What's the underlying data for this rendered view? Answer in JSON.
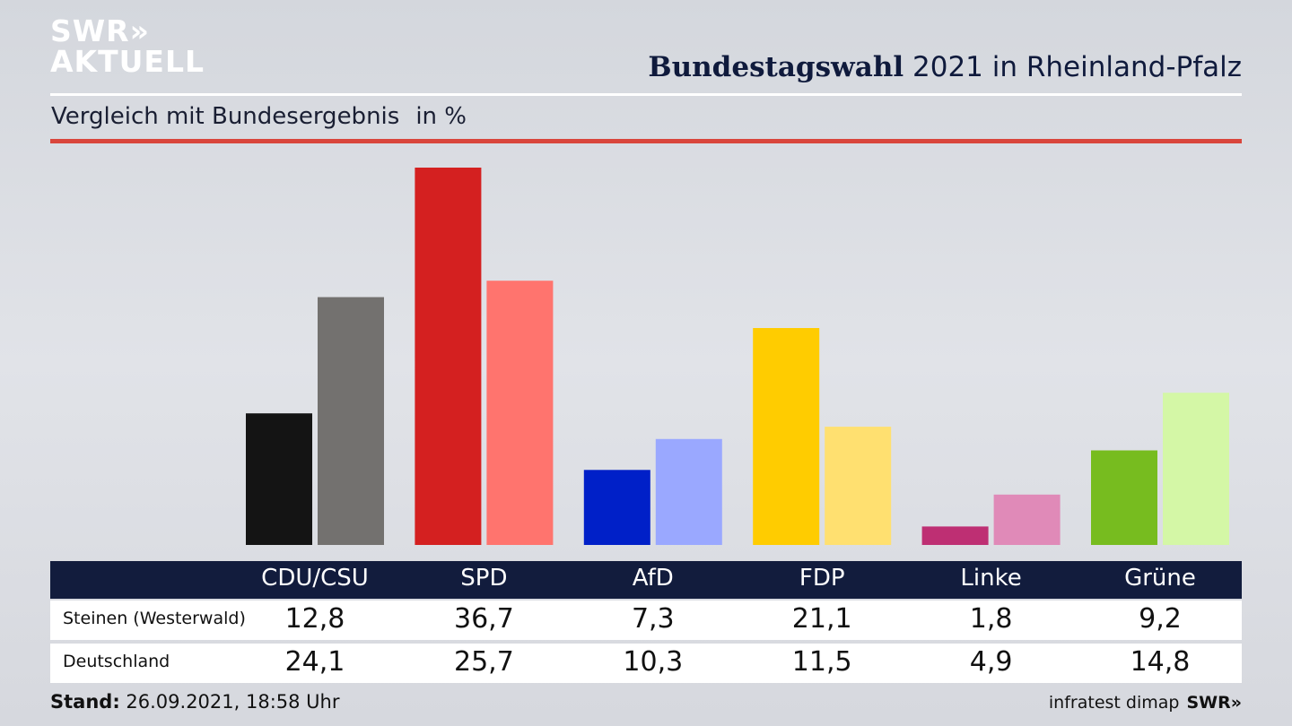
{
  "logo": {
    "line1": "SWR»",
    "line2": "AKTUELL"
  },
  "header": {
    "title_bold": "Bundestagswahl",
    "title_rest": " 2021 in Rheinland-Pfalz",
    "subtitle": "Vergleich mit Bundesergebnis",
    "unit": "in %"
  },
  "colors": {
    "header_bg": "#121c3d",
    "red_rule": "#d9463c",
    "local": [
      "#141414",
      "#d42020",
      "#0020c8",
      "#ffcc00",
      "#be2f73",
      "#77bc1f"
    ],
    "national": [
      "#73716f",
      "#ff746e",
      "#9aa8ff",
      "#ffe070",
      "#e08ab8",
      "#d4f7a6"
    ]
  },
  "chart_data": {
    "type": "bar",
    "categories": [
      "CDU/CSU",
      "SPD",
      "AfD",
      "FDP",
      "Linke",
      "Grüne"
    ],
    "series": [
      {
        "name": "Steinen (Westerwald)",
        "values": [
          12.8,
          36.7,
          7.3,
          21.1,
          1.8,
          9.2
        ]
      },
      {
        "name": "Deutschland",
        "values": [
          24.1,
          25.7,
          10.3,
          11.5,
          4.9,
          14.8
        ]
      }
    ],
    "display_values": [
      [
        "12,8",
        "36,7",
        "7,3",
        "21,1",
        "1,8",
        "9,2"
      ],
      [
        "24,1",
        "25,7",
        "10,3",
        "11,5",
        "4,9",
        "14,8"
      ]
    ],
    "ylim": [
      0,
      36.7
    ],
    "grid": false,
    "legend": "table-below"
  },
  "footer": {
    "stand_label": "Stand:",
    "stand_value": " 26.09.2021, 18:58 Uhr",
    "source": "infratest dimap",
    "brand": "SWR»"
  }
}
